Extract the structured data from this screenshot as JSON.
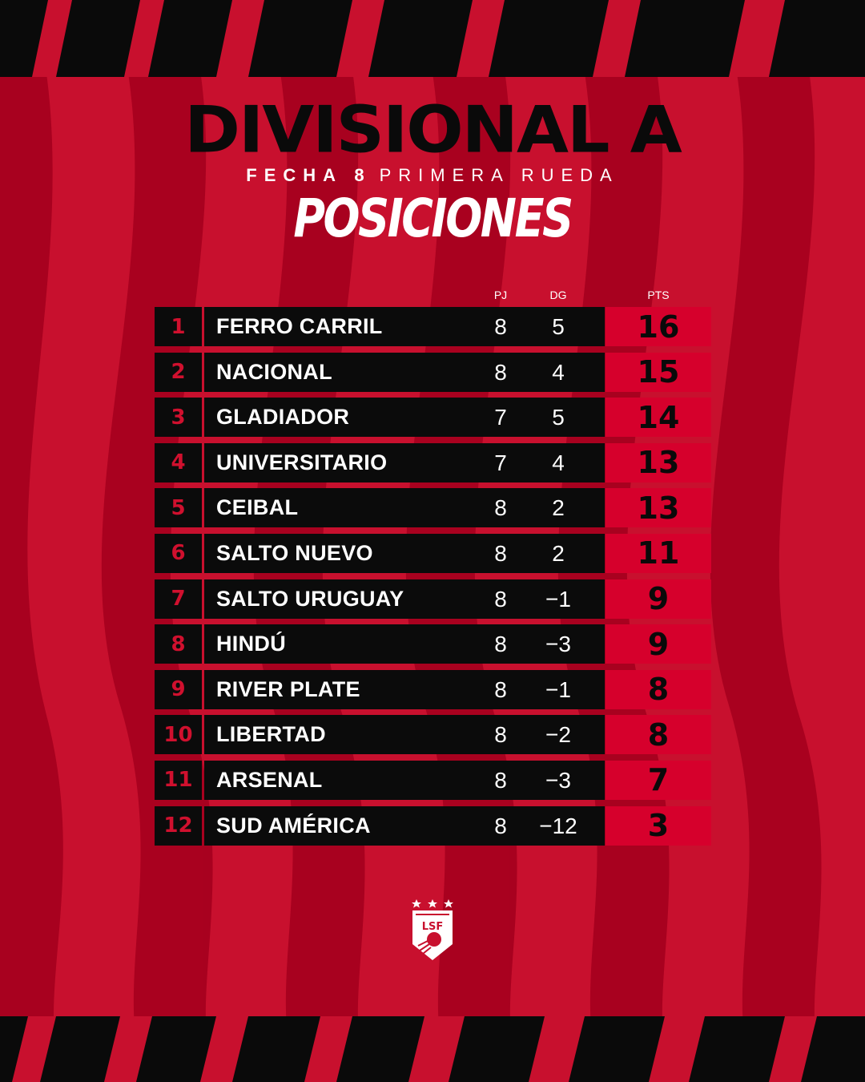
{
  "title": "DIVISIONAL A",
  "subtitle": {
    "fecha": "FECHA 8",
    "rueda": "PRIMERA RUEDA"
  },
  "section": "POSICIONES",
  "columns": {
    "pj": "PJ",
    "dg": "DG",
    "pts": "PTS"
  },
  "rows": [
    {
      "pos": "1",
      "team": "FERRO CARRIL",
      "pj": "8",
      "dg": "5",
      "pts": "16"
    },
    {
      "pos": "2",
      "team": "NACIONAL",
      "pj": "8",
      "dg": "4",
      "pts": "15"
    },
    {
      "pos": "3",
      "team": "GLADIADOR",
      "pj": "7",
      "dg": "5",
      "pts": "14"
    },
    {
      "pos": "4",
      "team": "UNIVERSITARIO",
      "pj": "7",
      "dg": "4",
      "pts": "13"
    },
    {
      "pos": "5",
      "team": "CEIBAL",
      "pj": "8",
      "dg": "2",
      "pts": "13"
    },
    {
      "pos": "6",
      "team": "SALTO NUEVO",
      "pj": "8",
      "dg": "2",
      "pts": "11"
    },
    {
      "pos": "7",
      "team": "SALTO URUGUAY",
      "pj": "8",
      "dg": "−1",
      "pts": "9"
    },
    {
      "pos": "8",
      "team": "HINDÚ",
      "pj": "8",
      "dg": "−3",
      "pts": "9"
    },
    {
      "pos": "9",
      "team": "RIVER PLATE",
      "pj": "8",
      "dg": "−1",
      "pts": "8"
    },
    {
      "pos": "10",
      "team": "LIBERTAD",
      "pj": "8",
      "dg": "−2",
      "pts": "8"
    },
    {
      "pos": "11",
      "team": "ARSENAL",
      "pj": "8",
      "dg": "−3",
      "pts": "7"
    },
    {
      "pos": "12",
      "team": "SUD AMÉRICA",
      "pj": "8",
      "dg": "−12",
      "pts": "3"
    }
  ],
  "logo": {
    "text": "LSF",
    "icon": "league-shield-logo"
  },
  "colors": {
    "red": "#c8102e",
    "dark_red": "#a8001f",
    "black": "#0b0b0b",
    "pts_red": "#d6002c",
    "white": "#ffffff"
  }
}
